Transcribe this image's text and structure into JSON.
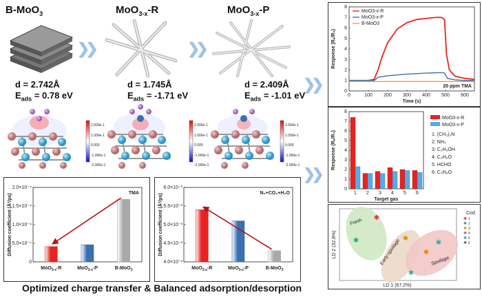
{
  "materials": {
    "b": {
      "name": "B-MoO",
      "sub": "3",
      "d": "d = 2.742Å",
      "eads": "= 0.78 eV"
    },
    "r": {
      "name": "MoO",
      "sub": "3-x",
      "suffix": "-R",
      "d": "d = 1.745Å",
      "eads": "= -1.71 eV"
    },
    "p": {
      "name": "MoO",
      "sub": "3-x",
      "suffix": "-P",
      "d": "d = 2.409Å",
      "eads": "= -1.01 eV"
    }
  },
  "eads_label": "E",
  "eads_sub": "ads",
  "colorbar_ticks": [
    "2.000e-1",
    "1.000e-1",
    "0.000",
    "-1.000e-1",
    "-2.000e-1"
  ],
  "caption": "Optimized charge transfer & Balanced adsorption/desorption",
  "colors": {
    "red": "#e8231f",
    "blue": "#3a6fb0",
    "gray": "#a9a9a9",
    "orange": "#f2a516",
    "arrow": "#b01515",
    "chevron": "#9fc3e6"
  },
  "chart_data": [
    {
      "type": "bar",
      "title": "TMA",
      "ylabel": "Diffusion coefficient (Å²/ps)",
      "categories": [
        "MoO3-x-R",
        "MoO3-x-P",
        "B-MoO3"
      ],
      "values": [
        4.1e-05,
        4.6e-05,
        0.000168
      ],
      "ylim": [
        0,
        0.0002
      ],
      "yticks": [
        "0",
        "5.0×10⁻⁵",
        "1.0×10⁻⁴",
        "1.5×10⁻⁴",
        "2.0×10⁻⁴"
      ]
    },
    {
      "type": "bar",
      "title": "N₂+CO₂+H₂O",
      "ylabel": "Diffusion coefficient (Å²/ps)",
      "categories": [
        "MoO3-x-R",
        "MoO3-x-P",
        "B-MoO3"
      ],
      "values": [
        0.0054,
        0.0051,
        0.0043
      ],
      "ylim": [
        0.004,
        0.006
      ],
      "yticks": [
        "4.0×10⁻³",
        "4.5×10⁻³",
        "5.0×10⁻³",
        "5.5×10⁻³",
        "6.0×10⁻³"
      ]
    },
    {
      "type": "line",
      "annotation": "20 ppm TMA",
      "xlabel": "Time (s)",
      "ylabel": "Response (Rₐ/R₉)",
      "xlim": [
        0,
        650
      ],
      "ylim": [
        0,
        8
      ],
      "xticks": [
        "0",
        "100",
        "200",
        "300",
        "400",
        "500",
        "600"
      ],
      "yticks": [
        "0",
        "1",
        "2",
        "3",
        "4",
        "5",
        "6",
        "7",
        "8"
      ],
      "series": [
        {
          "name": "MoO3-x-R",
          "x": [
            0,
            100,
            130,
            150,
            170,
            200,
            250,
            300,
            350,
            400,
            450,
            480,
            495,
            505,
            520,
            550,
            600,
            650
          ],
          "y": [
            1,
            1,
            1.1,
            2.0,
            3.2,
            4.6,
            5.9,
            6.5,
            6.8,
            6.9,
            7.0,
            7.0,
            6.8,
            3.5,
            2.0,
            1.4,
            1.2,
            1.1
          ]
        },
        {
          "name": "MoO3-x-P",
          "x": [
            0,
            100,
            130,
            150,
            200,
            300,
            400,
            480,
            495,
            510,
            550,
            600,
            650
          ],
          "y": [
            1,
            1,
            1.0,
            1.3,
            1.45,
            1.6,
            1.7,
            1.75,
            1.7,
            1.2,
            1.05,
            1.0,
            1.0
          ]
        },
        {
          "name": "B-MoO3",
          "x": [
            0,
            650
          ],
          "y": [
            0.9,
            0.9
          ]
        }
      ]
    },
    {
      "type": "bar",
      "xlabel": "Target gas",
      "ylabel": "Response (Rₐ/R₉)",
      "categories": [
        "1",
        "2",
        "3",
        "4",
        "5",
        "6"
      ],
      "ylim": [
        0,
        8
      ],
      "yticks": [
        "0",
        "1",
        "2",
        "3",
        "4",
        "5",
        "6",
        "7",
        "8"
      ],
      "series": [
        {
          "name": "MoO3-x-R",
          "values": [
            7.4,
            1.6,
            1.8,
            2.2,
            2.0,
            1.9
          ]
        },
        {
          "name": "MoO3-x-P",
          "values": [
            2.3,
            1.6,
            1.6,
            1.8,
            1.9,
            1.7
          ]
        }
      ],
      "gas_list": [
        "1: (CH₃)₃N",
        "2: NH₃",
        "3: C₂H₅OH",
        "4: C₃H₆O",
        "5: HCHO",
        "6: C₃H₈O"
      ]
    },
    {
      "type": "scatter",
      "xlabel": "LD 1 (67.2%)",
      "ylabel": "LD 2 (32.8%)",
      "groups": [
        "Fresh",
        "Early-spoilage",
        "Spoilage"
      ],
      "legend_title": "Cod",
      "legend": [
        "1",
        "2",
        "3",
        "4",
        "5",
        "6"
      ]
    }
  ]
}
